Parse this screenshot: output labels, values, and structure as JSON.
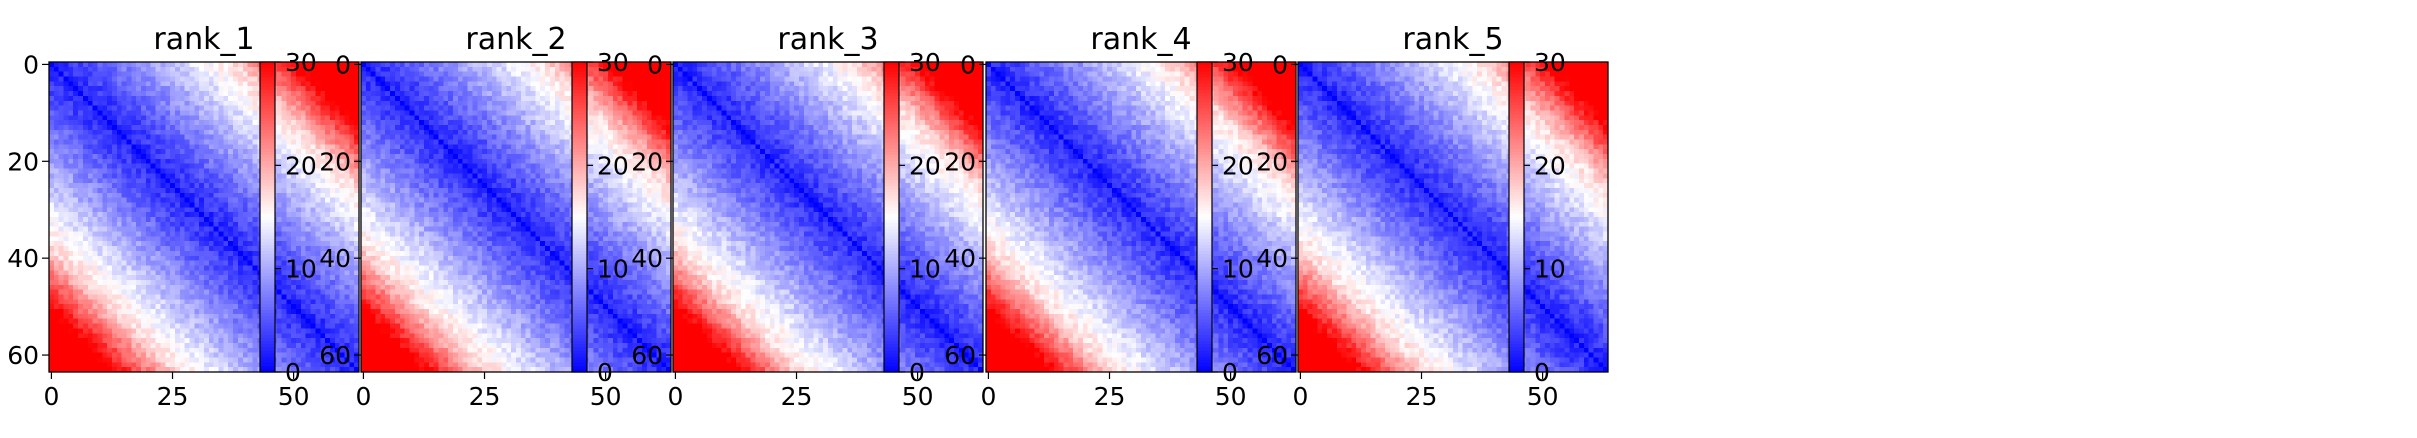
{
  "chart_data": [
    {
      "type": "heatmap",
      "title": "rank_1",
      "matrix_size": 64,
      "vmin": 0,
      "vmax": 30,
      "colormap": "bwr",
      "x_ticks": [
        0,
        25,
        50
      ],
      "y_ticks": [
        0,
        20,
        40,
        60
      ],
      "colorbar_ticks": [
        0,
        10,
        20,
        30
      ],
      "corner_strength": 1.0,
      "seed": 11
    },
    {
      "type": "heatmap",
      "title": "rank_2",
      "matrix_size": 64,
      "vmin": 0,
      "vmax": 30,
      "colormap": "bwr",
      "x_ticks": [
        0,
        25,
        50
      ],
      "y_ticks": [
        0,
        20,
        40,
        60
      ],
      "colorbar_ticks": [
        0,
        10,
        20,
        30
      ],
      "corner_strength": 0.95,
      "seed": 23
    },
    {
      "type": "heatmap",
      "title": "rank_3",
      "matrix_size": 64,
      "vmin": 0,
      "vmax": 30,
      "colormap": "bwr",
      "x_ticks": [
        0,
        25,
        50
      ],
      "y_ticks": [
        0,
        20,
        40,
        60
      ],
      "colorbar_ticks": [
        0,
        10,
        20,
        30
      ],
      "corner_strength": 1.05,
      "seed": 37
    },
    {
      "type": "heatmap",
      "title": "rank_4",
      "matrix_size": 64,
      "vmin": 0,
      "vmax": 30,
      "colormap": "bwr",
      "x_ticks": [
        0,
        25,
        50
      ],
      "y_ticks": [
        0,
        20,
        40,
        60
      ],
      "colorbar_ticks": [
        0,
        10,
        20,
        30
      ],
      "corner_strength": 1.0,
      "seed": 41
    },
    {
      "type": "heatmap",
      "title": "rank_5",
      "matrix_size": 64,
      "vmin": 0,
      "vmax": 30,
      "colormap": "bwr",
      "x_ticks": [
        0,
        25,
        50
      ],
      "y_ticks": [
        0,
        20,
        40,
        60
      ],
      "colorbar_ticks": [
        0,
        10,
        20,
        30
      ],
      "corner_strength": 0.9,
      "seed": 53
    }
  ]
}
